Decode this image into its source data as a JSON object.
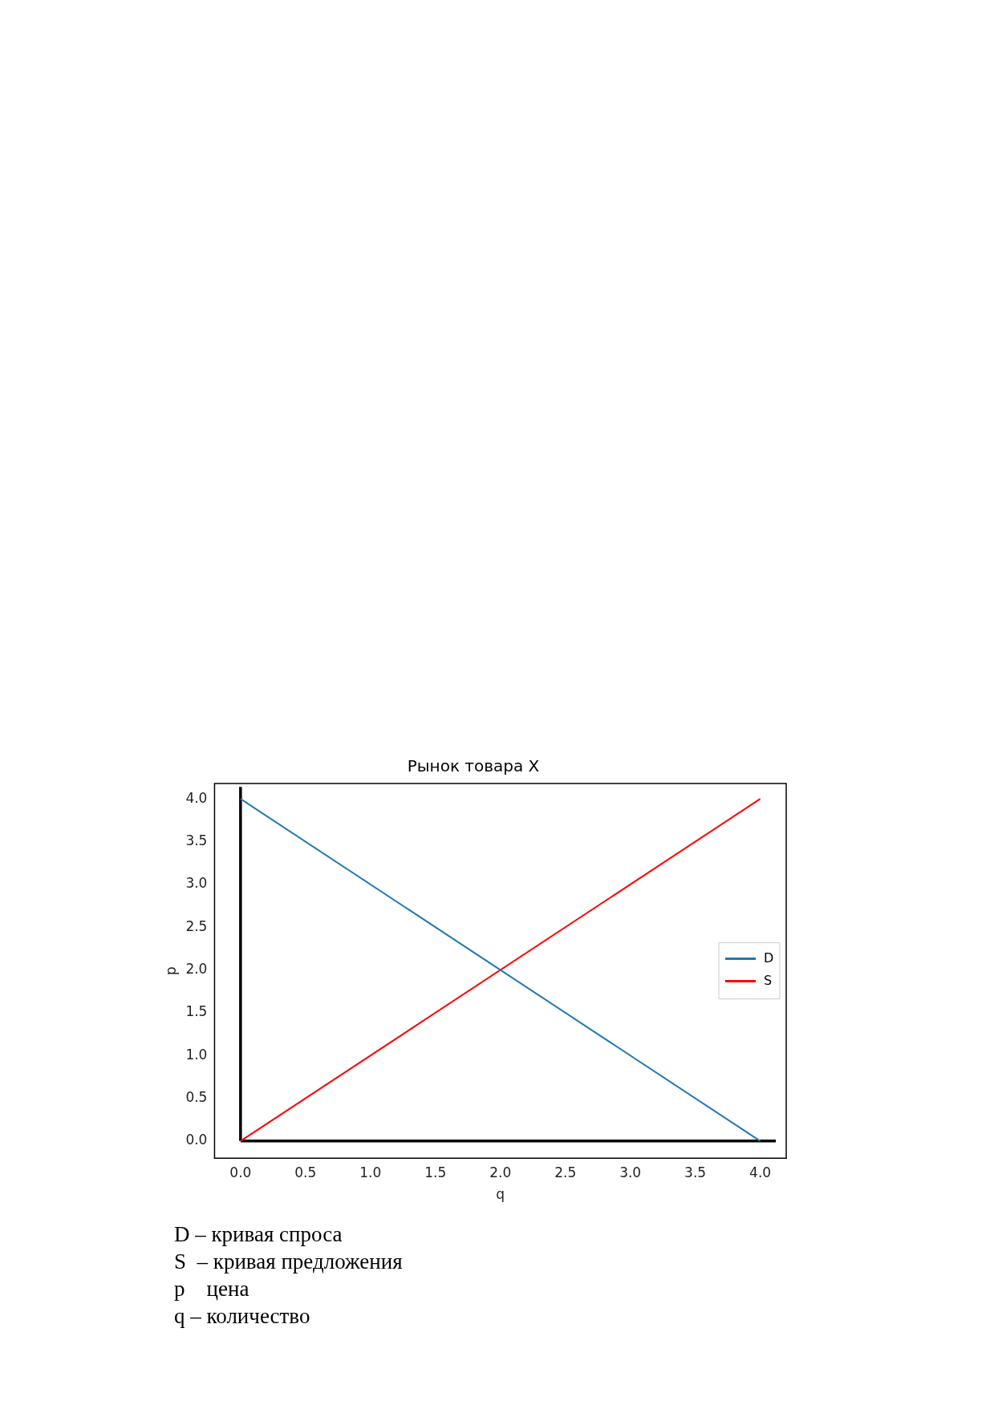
{
  "chart_data": {
    "type": "line",
    "title": "Рынок товара X",
    "xlabel": "q",
    "ylabel": "p",
    "xlim": [
      -0.2,
      4.2
    ],
    "ylim": [
      -0.2,
      4.18
    ],
    "xticks": [
      {
        "value": 0,
        "label": "0.0"
      },
      0.5,
      {
        "value": 1,
        "label": "1.0"
      },
      1.5,
      {
        "value": 2,
        "label": "2.0"
      },
      2.5,
      {
        "value": 3,
        "label": "3.0"
      },
      3.5,
      {
        "value": 4,
        "label": "4.0"
      }
    ],
    "yticks": [
      {
        "value": 0,
        "label": "0.0"
      },
      0.5,
      {
        "value": 1,
        "label": "1.0"
      },
      1.5,
      {
        "value": 2,
        "label": "2.0"
      },
      2.5,
      {
        "value": 3,
        "label": "3.0"
      },
      3.5,
      {
        "value": 4,
        "label": "4.0"
      }
    ],
    "series": [
      {
        "name": "D",
        "color": "#1f77b4",
        "x": [
          0,
          4
        ],
        "values": [
          4,
          0
        ]
      },
      {
        "name": "S",
        "color": "#ff0000",
        "x": [
          0,
          4
        ],
        "values": [
          0,
          4
        ]
      },
      {
        "color": "#000000",
        "x": [
          0,
          4.12
        ],
        "values": [
          0,
          0
        ]
      },
      {
        "color": "#000000",
        "x": [
          0,
          0
        ],
        "values": [
          0,
          4.14
        ]
      }
    ],
    "legend": "right",
    "grid": false,
    "annotations": [
      "D – кривая спроса",
      "S  – кривая предложения",
      "p    цена",
      "q – количество"
    ]
  }
}
